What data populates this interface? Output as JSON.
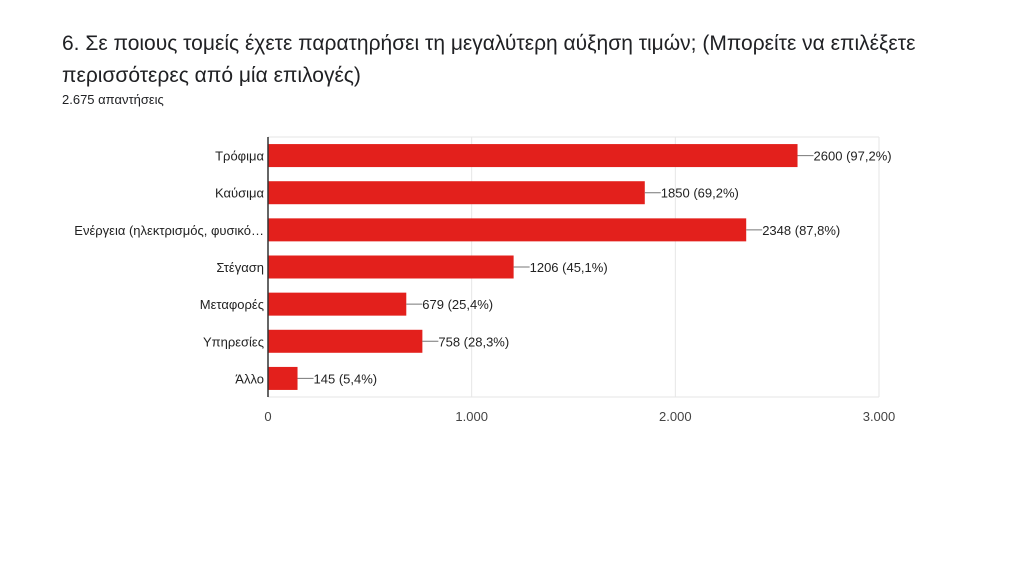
{
  "question": {
    "title": "6. Σε ποιους τομείς έχετε παρατηρήσει τη μεγαλύτερη αύξηση τιμών; (Μπορείτε να επιλέξετε περισσότερες από μία επιλογές)",
    "response_count": "2.675 απαντήσεις"
  },
  "colors": {
    "bar": "#e3201c",
    "grid": "#e6e6e6",
    "axis": "#333333"
  },
  "chart_data": {
    "type": "bar",
    "orientation": "horizontal",
    "categories": [
      "Τρόφιμα",
      "Καύσιμα",
      "Ενέργεια (ηλεκτρισμός, φυσικό…",
      "Στέγαση",
      "Μεταφορές",
      "Υπηρεσίες",
      "Άλλο"
    ],
    "values": [
      2600,
      1850,
      2348,
      1206,
      679,
      758,
      145
    ],
    "data_labels": [
      "2600 (97,2%)",
      "1850 (69,2%)",
      "2348 (87,8%)",
      "1206 (45,1%)",
      "679 (25,4%)",
      "758 (28,3%)",
      "145 (5,4%)"
    ],
    "xlim": [
      0,
      3000
    ],
    "x_ticks": [
      0,
      1000,
      2000,
      3000
    ],
    "x_tick_labels": [
      "0",
      "1.000",
      "2.000",
      "3.000"
    ],
    "grid": true
  }
}
